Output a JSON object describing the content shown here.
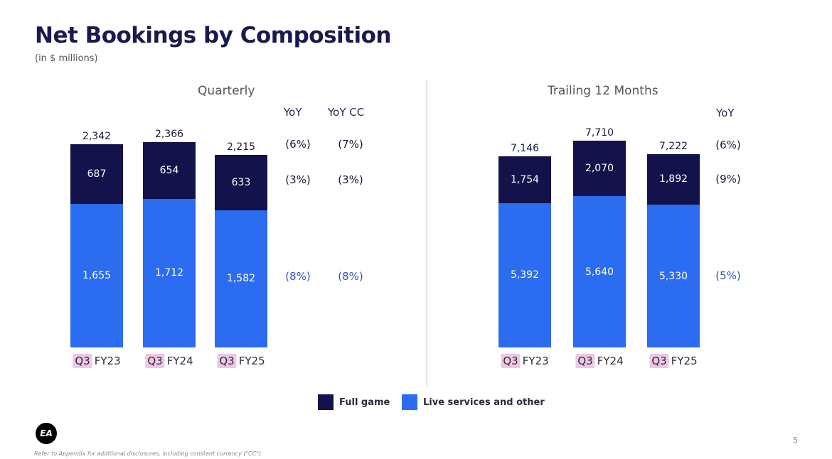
{
  "title": "Net Bookings by Composition",
  "subtitle": "(in $ millions)",
  "legend": {
    "full_game": "Full game",
    "live_services": "Live services and other"
  },
  "colors": {
    "full_game": "#14124a",
    "live_services": "#2b6cf0",
    "quarter_tag": "#eec7e6"
  },
  "logo_text": "EA",
  "footnote": "Refer to Appendix for additional disclosures, including constant currency (\"CC\").",
  "page_number": "5",
  "chart_data": [
    {
      "type": "bar",
      "stacked": true,
      "title": "Quarterly",
      "categories": [
        {
          "q": "Q3",
          "fy": "FY23"
        },
        {
          "q": "Q3",
          "fy": "FY24"
        },
        {
          "q": "Q3",
          "fy": "FY25"
        }
      ],
      "totals": [
        "2,342",
        "2,366",
        "2,215"
      ],
      "series": [
        {
          "name": "Full game",
          "values": [
            687,
            654,
            633
          ],
          "labels": [
            "687",
            "654",
            "633"
          ]
        },
        {
          "name": "Live services and other",
          "values": [
            1655,
            1712,
            1582
          ],
          "labels": [
            "1,655",
            "1,712",
            "1,582"
          ]
        }
      ],
      "yoy_headers": [
        "YoY",
        "YoY CC"
      ],
      "yoy": {
        "total": [
          "(6%)",
          "(7%)"
        ],
        "full_game": [
          "(3%)",
          "(3%)"
        ],
        "live_services": [
          "(8%)",
          "(8%)"
        ]
      }
    },
    {
      "type": "bar",
      "stacked": true,
      "title": "Trailing 12 Months",
      "categories": [
        {
          "q": "Q3",
          "fy": "FY23"
        },
        {
          "q": "Q3",
          "fy": "FY24"
        },
        {
          "q": "Q3",
          "fy": "FY25"
        }
      ],
      "totals": [
        "7,146",
        "7,710",
        "7,222"
      ],
      "series": [
        {
          "name": "Full game",
          "values": [
            1754,
            2070,
            1892
          ],
          "labels": [
            "1,754",
            "2,070",
            "1,892"
          ]
        },
        {
          "name": "Live services and other",
          "values": [
            5392,
            5640,
            5330
          ],
          "labels": [
            "5,392",
            "5,640",
            "5,330"
          ]
        }
      ],
      "yoy_headers": [
        "YoY"
      ],
      "yoy": {
        "total": [
          "(6%)"
        ],
        "full_game": [
          "(9%)"
        ],
        "live_services": [
          "(5%)"
        ]
      }
    }
  ]
}
